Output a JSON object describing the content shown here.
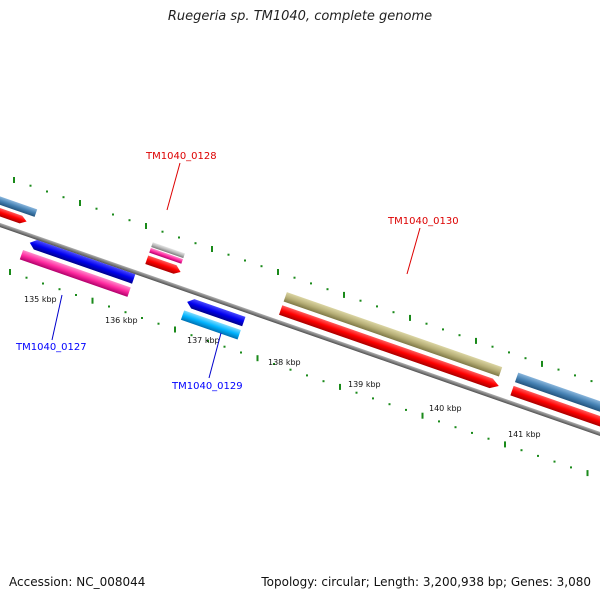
{
  "title": "Ruegeria sp. TM1040, complete genome",
  "footer": {
    "accession": "Accession: NC_008044",
    "summary": "Topology: circular; Length: 3,200,938 bp; Genes: 3,080"
  },
  "scale": {
    "labels": [
      "135 kbp",
      "136 kbp",
      "137 kbp",
      "138 kbp",
      "139 kbp",
      "140 kbp",
      "141 kbp"
    ],
    "tick_color": "#1a8a1a"
  },
  "genes": [
    {
      "label": "TM1040_0127",
      "strand": "reverse",
      "color": "#0000ff"
    },
    {
      "label": "TM1040_0128",
      "strand": "forward",
      "color": "#dd0000"
    },
    {
      "label": "TM1040_0129",
      "strand": "reverse",
      "color": "#0000ff"
    },
    {
      "label": "TM1040_0130",
      "strand": "forward",
      "color": "#dd0000"
    }
  ],
  "colors": {
    "backbone": "#888888",
    "cds_red": "#ff0000",
    "cds_blue": "#0000ee",
    "cds_magenta": "#ff33aa",
    "cds_cyan": "#00b0ff",
    "cds_olive": "#b8b078",
    "cds_steelblue": "#4682b4",
    "cds_grey": "#b0b0b0"
  }
}
